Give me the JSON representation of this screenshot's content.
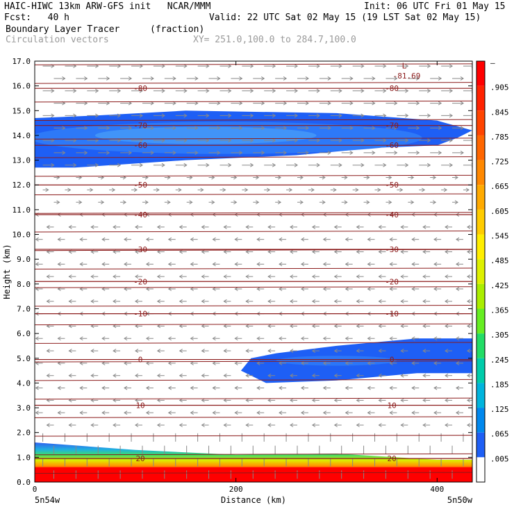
{
  "header": {
    "model": "HAIC-HIWC 13km ARW-GFS init   NCAR/MMM",
    "init": "Init: 06 UTC Fri 01 May 15",
    "fcst": "Fcst:   40 h",
    "valid": "Valid: 22 UTC Sat 02 May 15 (19 LST Sat 02 May 15)",
    "field": "Boundary Layer Tracer",
    "units": "(fraction)",
    "vectors": "Circulation vectors",
    "xy": "XY= 251.0,100.0 to 284.7,100.0"
  },
  "chart_data": {
    "type": "heatmap",
    "title": "Boundary Layer Tracer",
    "xlabel": "Distance (km)",
    "ylabel": "Height (km)",
    "xlim": [
      0,
      435
    ],
    "ylim": [
      0,
      17
    ],
    "x_ticks": [
      0,
      200,
      400
    ],
    "x_tick_labels": [
      "0",
      "200",
      "400"
    ],
    "y_ticks": [
      0,
      1,
      2,
      3,
      4,
      5,
      6,
      7,
      8,
      9,
      10,
      11,
      12,
      13,
      14,
      15,
      16,
      17
    ],
    "y_tick_labels": [
      "0.0",
      "1.0",
      "2.0",
      "3.0",
      "4.0",
      "5.0",
      "6.0",
      "7.0",
      "8.0",
      "9.0",
      "10.0",
      "11.0",
      "12.0",
      "13.0",
      "14.0",
      "15.0",
      "16.0",
      "17.0"
    ],
    "x_endpoint_labels": [
      "5n54w",
      "5n50w"
    ],
    "colorbar": {
      "labels": [
        "–",
        ".905",
        ".845",
        ".785",
        ".725",
        ".665",
        ".605",
        ".545",
        ".485",
        ".425",
        ".365",
        ".305",
        ".245",
        ".185",
        ".125",
        ".065",
        ".005"
      ],
      "colors": [
        "#ff0000",
        "#ff2200",
        "#ff4400",
        "#ff6600",
        "#ff8800",
        "#ffaa00",
        "#ffcc00",
        "#ffee00",
        "#ddf000",
        "#aaee00",
        "#66ee22",
        "#22dd66",
        "#00ccaa",
        "#00b4dd",
        "#0088ee",
        "#1e5ff5",
        "#ffffff"
      ]
    },
    "series": [
      {
        "name": "",
        "kind": "tracer_upper_layer",
        "level": ".065",
        "x": [
          0,
          40,
          150,
          260,
          340,
          400,
          420,
          435,
          400,
          300,
          150,
          60,
          0
        ],
        "y": [
          12.7,
          12.7,
          13.0,
          13.2,
          13.5,
          13.6,
          13.9,
          14.2,
          14.6,
          14.9,
          15.0,
          14.8,
          14.7
        ]
      },
      {
        "name": "",
        "kind": "tracer_mid_layer",
        "level": ".065",
        "x": [
          205,
          230,
          300,
          380,
          435,
          435,
          380,
          300,
          240,
          215
        ],
        "y": [
          4.5,
          4.0,
          4.1,
          4.4,
          4.4,
          5.8,
          5.8,
          5.5,
          5.2,
          5.0
        ]
      },
      {
        "name": "",
        "kind": "tracer_boundary_layer",
        "x": [
          0,
          100,
          200,
          300,
          400,
          435
        ],
        "top": [
          1.6,
          1.3,
          1.1,
          1.15,
          0.9,
          0.9
        ]
      }
    ],
    "contours": {
      "name": "",
      "levels": [
        -80,
        -70,
        -60,
        -50,
        -40,
        -30,
        -20,
        -10,
        0,
        10,
        20
      ],
      "heights_km": [
        15.9,
        14.4,
        13.6,
        12.0,
        10.8,
        9.4,
        8.1,
        6.8,
        4.95,
        3.1,
        0.95
      ],
      "min_label": "L",
      "min_value": "-81.69"
    }
  }
}
